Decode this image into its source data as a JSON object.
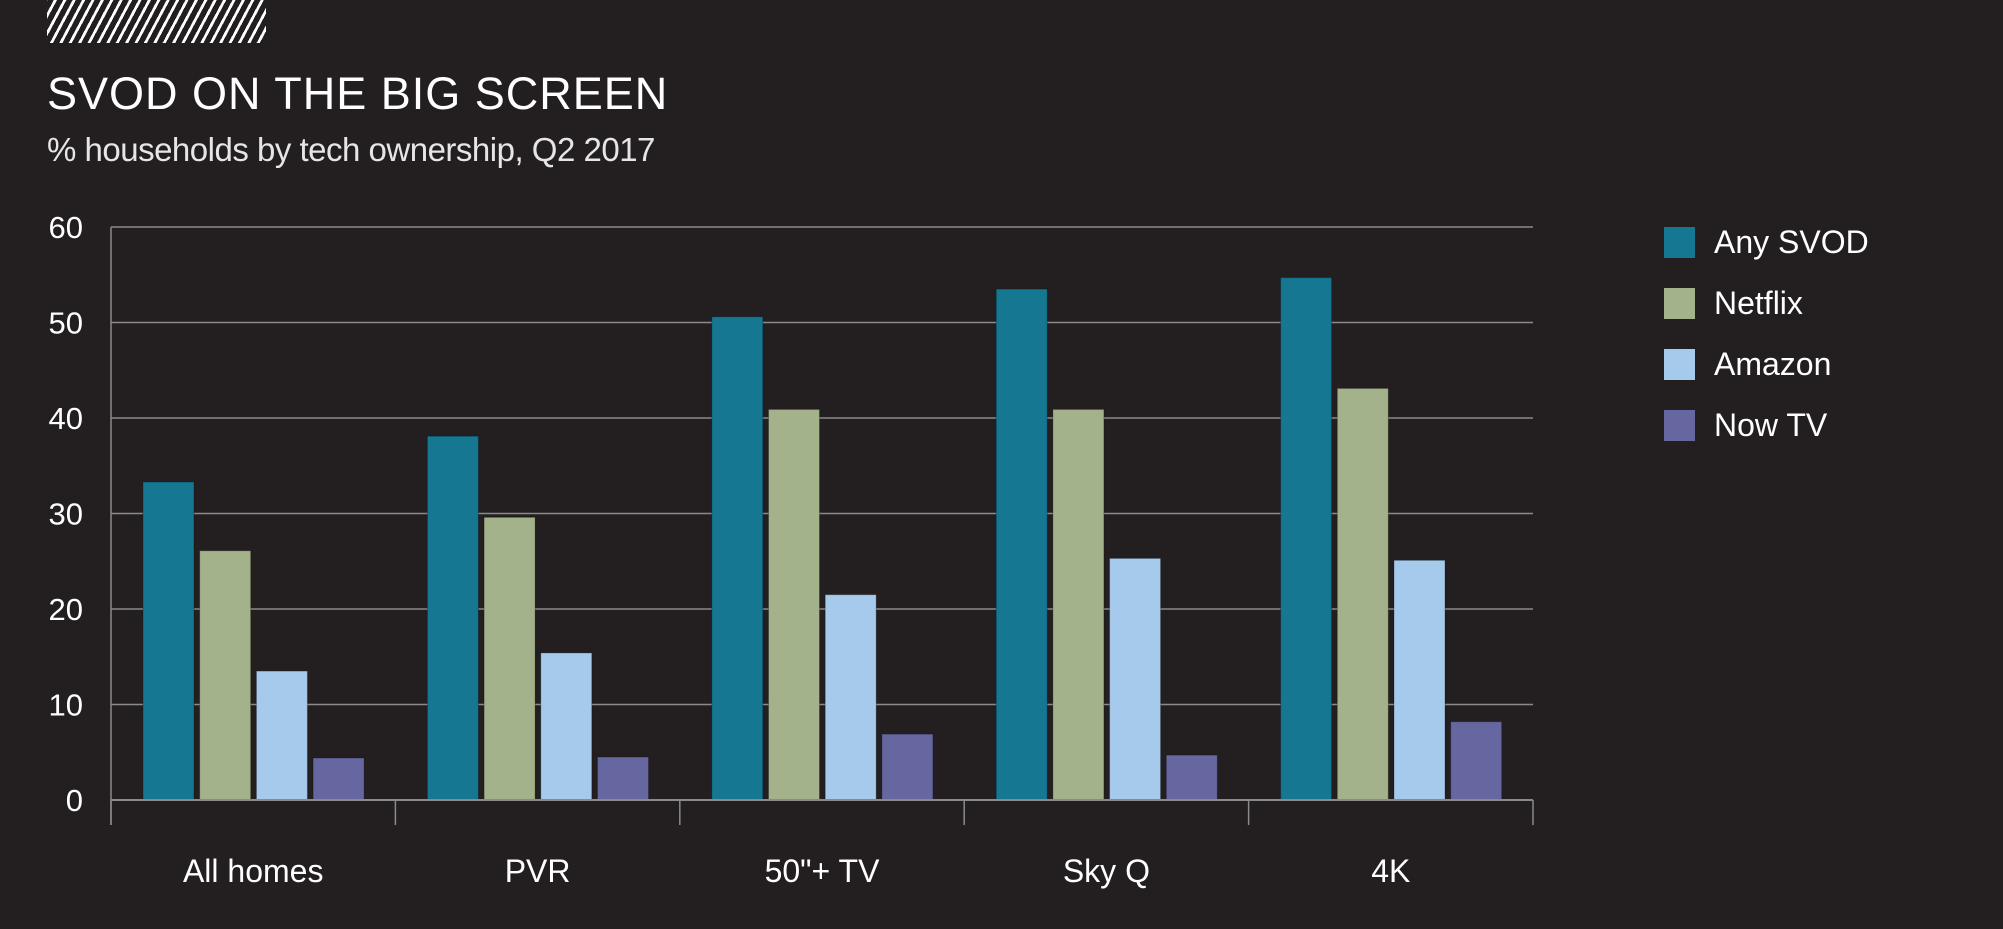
{
  "chart_data": {
    "type": "bar",
    "title": "SVOD ON THE BIG SCREEN",
    "subtitle": "% households by tech ownership, Q2 2017",
    "xlabel": "",
    "ylabel": "",
    "ylim": [
      0,
      60
    ],
    "yticks": [
      0,
      10,
      20,
      30,
      40,
      50,
      60
    ],
    "ytick_labels": [
      "0",
      "10",
      "20",
      "30",
      "40",
      "50",
      "60"
    ],
    "grid": true,
    "legend_position": "right",
    "categories": [
      "All homes",
      "PVR",
      "50\"+ TV",
      "Sky Q",
      "4K"
    ],
    "series": [
      {
        "name": "Any SVOD",
        "color": "#157791",
        "values": [
          33.3,
          38.1,
          50.6,
          53.5,
          54.7
        ]
      },
      {
        "name": "Netflix",
        "color": "#a3b28a",
        "values": [
          26.1,
          29.6,
          40.9,
          40.9,
          43.1
        ]
      },
      {
        "name": "Amazon",
        "color": "#a6caeb",
        "values": [
          13.5,
          15.4,
          21.5,
          25.3,
          25.1
        ]
      },
      {
        "name": "Now TV",
        "color": "#6667a1",
        "values": [
          4.4,
          4.5,
          6.9,
          4.7,
          8.2
        ]
      }
    ]
  },
  "colors": {
    "background": "#231f20",
    "gridline": "#8a8a8a",
    "text": "#ffffff"
  }
}
